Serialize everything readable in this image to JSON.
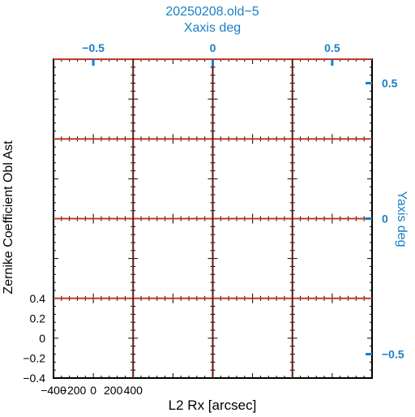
{
  "chart_data": {
    "type": "line",
    "title": "20250208.old−5",
    "top_axis": {
      "label": "Xaxis deg",
      "ticks": [
        -0.5,
        0,
        0.5
      ],
      "tick_labels": [
        "−0.5",
        "0",
        "0.5"
      ]
    },
    "right_axis": {
      "label": "Yaxis deg",
      "ticks": [
        0.5,
        0,
        -0.5
      ],
      "tick_labels": [
        "0.5",
        "0",
        "−0.5"
      ]
    },
    "xlabel": "L2 Rx [arcsec]",
    "ylabel": "Zernike Coefficient Obl Ast",
    "x_tick_labels": [
      "−400",
      "−200",
      "0",
      "200",
      "400"
    ],
    "y_tick_labels": [
      "0.4",
      "0.2",
      "0",
      "−0.2",
      "−0.4"
    ],
    "grid_rows": 4,
    "grid_cols": 4,
    "xlim": [
      -400,
      400
    ],
    "ylim": [
      -0.4,
      0.4
    ],
    "series_color": "#c0392b",
    "panel_series_y": 0.4,
    "colors": {
      "accent": "#1a7fc4",
      "line": "#c0392b",
      "frame": "#000000"
    }
  }
}
